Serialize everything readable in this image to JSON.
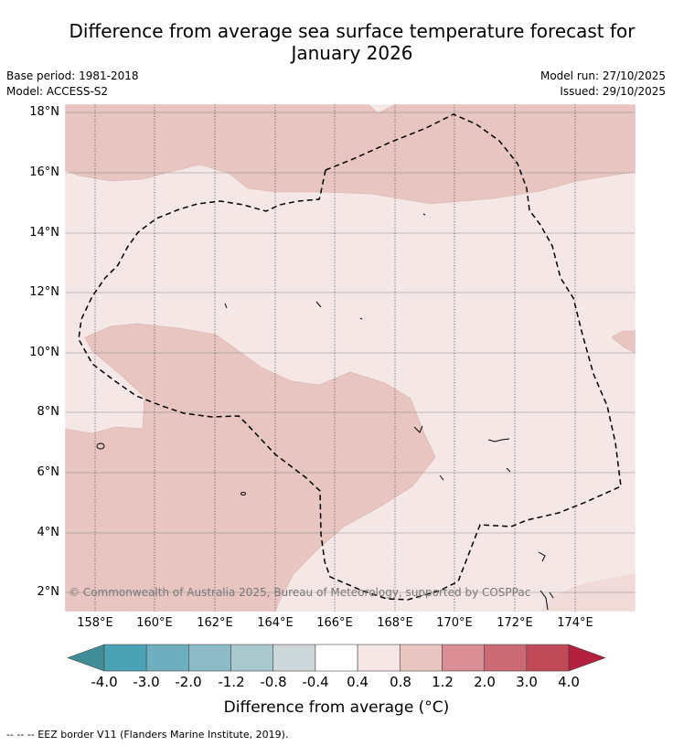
{
  "title_line1": "Difference from average sea surface temperature forecast for",
  "title_line2": "January 2026",
  "base_period": "Base period: 1981-2018",
  "model": "Model: ACCESS-S2",
  "model_run": "Model run: 27/10/2025",
  "issued": "Issued: 29/10/2025",
  "copyright": "© Commonwealth of Australia 2025, Bureau of Meteorology, supported by COSPPac",
  "lat_labels": [
    "18°N",
    "16°N",
    "14°N",
    "12°N",
    "10°N",
    "8°N",
    "6°N",
    "4°N",
    "2°N"
  ],
  "lon_labels": [
    "158°E",
    "160°E",
    "162°E",
    "164°E",
    "166°E",
    "168°E",
    "170°E",
    "172°E",
    "174°E"
  ],
  "colorbar": {
    "ticks": [
      "-4.0",
      "-3.0",
      "-2.0",
      "-1.2",
      "-0.8",
      "-0.4",
      "0.4",
      "0.8",
      "1.2",
      "2.0",
      "3.0",
      "4.0"
    ],
    "colors": [
      "#4aa3b5",
      "#6dafbf",
      "#8cbac7",
      "#a9c8cd",
      "#ced7d9",
      "#ffffff",
      "#f5e7e6",
      "#e8c5c1",
      "#d98f95",
      "#cb6a74",
      "#c04a58"
    ],
    "under_color": "#3f8d96",
    "over_color": "#b42040",
    "label": "Difference from average (°C)"
  },
  "legend_text": "--  --  -- EEZ border V11 (Flanders Marine Institute, 2019).",
  "map_colors": {
    "warm1": "#f5e7e6",
    "warm2": "#e8c5c1"
  }
}
